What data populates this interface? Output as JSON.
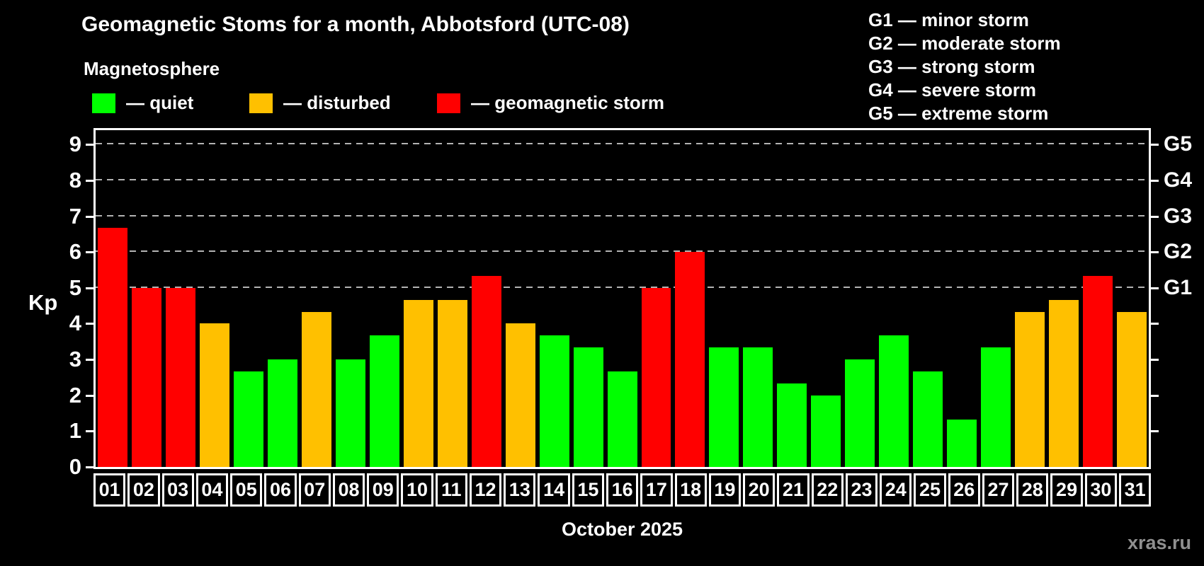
{
  "header": {
    "title": "Geomagnetic Stoms for a month, Abbotsford (UTC-08)",
    "subtitle": "Magnetosphere"
  },
  "legend": {
    "items": [
      {
        "key": "quiet",
        "label": "— quiet",
        "color": "#00ff00"
      },
      {
        "key": "disturbed",
        "label": "— disturbed",
        "color": "#ffc000"
      },
      {
        "key": "storm",
        "label": "— geomagnetic storm",
        "color": "#ff0000"
      }
    ]
  },
  "g_scale_legend": {
    "lines": [
      "G1 — minor storm",
      "G2 — moderate storm",
      "G3 — strong storm",
      "G4 — severe storm",
      "G5 — extreme storm"
    ]
  },
  "footer": {
    "xlabel": "October 2025",
    "watermark": "xras.ru"
  },
  "chart_data": {
    "type": "bar",
    "title": "Geomagnetic Stoms for a month, Abbotsford (UTC-08)",
    "xlabel": "October 2025",
    "ylabel": "Kp",
    "ylim": [
      0,
      9.4
    ],
    "yticks": [
      0,
      1,
      2,
      3,
      4,
      5,
      6,
      7,
      8,
      9
    ],
    "gridline_values": [
      5,
      6,
      7,
      8,
      9
    ],
    "grid_style": "dashed horizontal gray lines at Kp 5-9 only",
    "right_axis": {
      "tick_values": [
        1,
        2,
        3,
        4,
        5,
        6,
        7,
        8,
        9
      ],
      "labels": [
        "G1",
        "G2",
        "G3",
        "G4",
        "G5"
      ],
      "label_values": [
        5,
        6,
        7,
        8,
        9
      ]
    },
    "categories": [
      "01",
      "02",
      "03",
      "04",
      "05",
      "06",
      "07",
      "08",
      "09",
      "10",
      "11",
      "12",
      "13",
      "14",
      "15",
      "16",
      "17",
      "18",
      "19",
      "20",
      "21",
      "22",
      "23",
      "24",
      "25",
      "26",
      "27",
      "28",
      "29",
      "30",
      "31"
    ],
    "values": [
      6.67,
      5.0,
      5.0,
      4.0,
      2.67,
      3.0,
      4.33,
      3.0,
      3.67,
      4.67,
      4.67,
      5.33,
      4.0,
      3.67,
      3.33,
      2.67,
      5.0,
      6.0,
      3.33,
      3.33,
      2.33,
      2.0,
      3.0,
      3.67,
      2.67,
      1.33,
      3.33,
      4.33,
      4.67,
      5.33,
      4.33
    ],
    "status": [
      "storm",
      "storm",
      "storm",
      "disturbed",
      "quiet",
      "quiet",
      "disturbed",
      "quiet",
      "quiet",
      "disturbed",
      "disturbed",
      "storm",
      "disturbed",
      "quiet",
      "quiet",
      "quiet",
      "storm",
      "storm",
      "quiet",
      "quiet",
      "quiet",
      "quiet",
      "quiet",
      "quiet",
      "quiet",
      "quiet",
      "quiet",
      "disturbed",
      "disturbed",
      "storm",
      "disturbed"
    ],
    "colors": {
      "quiet": "#00ff00",
      "disturbed": "#ffc000",
      "storm": "#ff0000"
    },
    "legend_position": "top-left"
  }
}
